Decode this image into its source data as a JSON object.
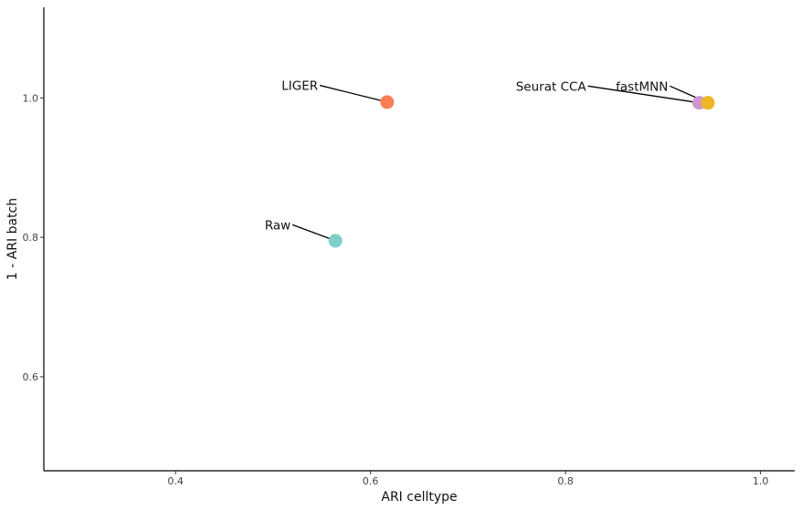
{
  "chart_data": {
    "type": "scatter",
    "title": "",
    "xlabel": "ARI celltype",
    "ylabel": "1 - ARI batch",
    "xlim": [
      0.265,
      1.035
    ],
    "ylim": [
      0.465,
      1.13
    ],
    "xticks": [
      0.4,
      0.6,
      0.8,
      1.0
    ],
    "xtick_labels": [
      "0.4",
      "0.6",
      "0.8",
      "1.0"
    ],
    "yticks": [
      0.6,
      0.8,
      1.0
    ],
    "ytick_labels": [
      "0.6",
      "0.8",
      "1.0"
    ],
    "grid": false,
    "legend": "none",
    "points": [
      {
        "label": "Raw",
        "x": 0.564,
        "y": 0.795,
        "color": "#7ececa"
      },
      {
        "label": "LIGER",
        "x": 0.617,
        "y": 0.994,
        "color": "#f97e54"
      },
      {
        "label": "Seurat CCA",
        "x": 0.937,
        "y": 0.993,
        "color": "#cf97cf"
      },
      {
        "label": "fastMNN",
        "x": 0.946,
        "y": 0.993,
        "color": "#efb524"
      }
    ],
    "label_positions": [
      {
        "x": 0.52,
        "y": 0.818
      },
      {
        "x": 0.548,
        "y": 1.018
      },
      {
        "x": 0.823,
        "y": 1.017
      },
      {
        "x": 0.907,
        "y": 1.017
      }
    ]
  }
}
